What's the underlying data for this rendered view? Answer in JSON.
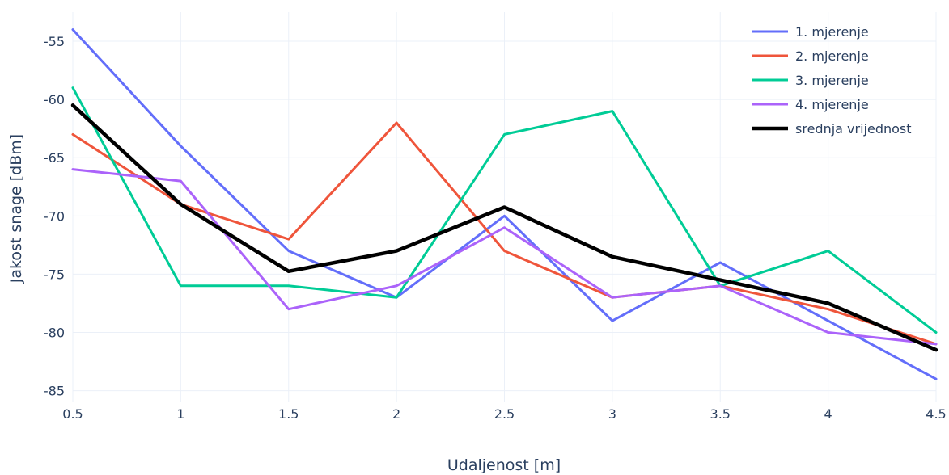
{
  "chart_data": {
    "type": "line",
    "title": "",
    "xlabel": "Udaljenost [m]",
    "ylabel": "Jakost snage [dBm]",
    "x": [
      0.5,
      1,
      1.5,
      2,
      2.5,
      3,
      3.5,
      4,
      4.5
    ],
    "xlim": [
      0.5,
      4.5
    ],
    "ylim": [
      -86,
      -52.5
    ],
    "xticks": [
      "0.5",
      "1",
      "1.5",
      "2",
      "2.5",
      "3",
      "3.5",
      "4",
      "4.5"
    ],
    "yticks": [
      -55,
      -60,
      -65,
      -70,
      -75,
      -80,
      -85
    ],
    "ytick_labels": [
      "-55",
      "-60",
      "-65",
      "-70",
      "-75",
      "-80",
      "-85"
    ],
    "grid": true,
    "legend_position": "top-right",
    "series": [
      {
        "name": "1. mjerenje",
        "color": "#636efa",
        "width": 3,
        "values": [
          -54,
          -64,
          -73,
          -77,
          -70,
          -79,
          -74,
          -79,
          -84
        ]
      },
      {
        "name": "2. mjerenje",
        "color": "#ef553b",
        "width": 3,
        "values": [
          -63,
          -69,
          -72,
          -62,
          -73,
          -77,
          -76,
          -78,
          -81
        ]
      },
      {
        "name": "3. mjerenje",
        "color": "#00cc96",
        "width": 3,
        "values": [
          -59,
          -76,
          -76,
          -77,
          -63,
          -61,
          -76,
          -73,
          -80
        ]
      },
      {
        "name": "4. mjerenje",
        "color": "#ab63fa",
        "width": 3,
        "values": [
          -66,
          -67,
          -78,
          -76,
          -71,
          -77,
          -76,
          -80,
          -81
        ]
      },
      {
        "name": "srednja vrijednost",
        "color": "#000000",
        "width": 4.5,
        "values": [
          -60.5,
          -69,
          -74.75,
          -73,
          -69.25,
          -73.5,
          -75.5,
          -77.5,
          -81.5
        ]
      }
    ]
  }
}
